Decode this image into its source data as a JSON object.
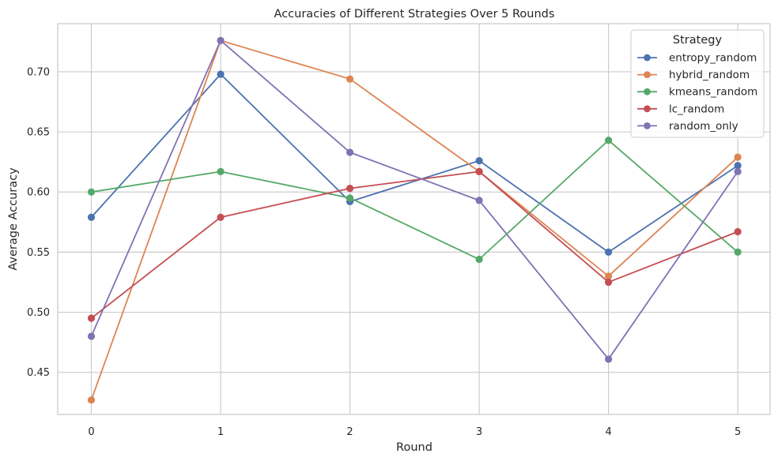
{
  "chart_data": {
    "type": "line",
    "title": "Accuracies of Different Strategies Over 5 Rounds",
    "xlabel": "Round",
    "ylabel": "Average Accuracy",
    "x": [
      0,
      1,
      2,
      3,
      4,
      5
    ],
    "xticks": [
      "0",
      "1",
      "2",
      "3",
      "4",
      "5"
    ],
    "yticks": [
      "0.45",
      "0.50",
      "0.55",
      "0.60",
      "0.65",
      "0.70"
    ],
    "xlim": [
      -0.26,
      5.25
    ],
    "ylim": [
      0.415,
      0.74
    ],
    "grid": true,
    "legend_title": "Strategy",
    "legend_position": "top-right",
    "series": [
      {
        "name": "entropy_random",
        "color": "#4c72b0",
        "values": [
          0.579,
          0.698,
          0.592,
          0.626,
          0.55,
          0.622
        ]
      },
      {
        "name": "hybrid_random",
        "color": "#dd8452",
        "values": [
          0.427,
          0.726,
          0.694,
          0.617,
          0.53,
          0.629
        ]
      },
      {
        "name": "kmeans_random",
        "color": "#55a868",
        "values": [
          0.6,
          0.617,
          0.595,
          0.544,
          0.643,
          0.55
        ]
      },
      {
        "name": "lc_random",
        "color": "#c44e52",
        "values": [
          0.495,
          0.579,
          0.603,
          0.617,
          0.525,
          0.567
        ]
      },
      {
        "name": "random_only",
        "color": "#8172b3",
        "values": [
          0.48,
          0.726,
          0.633,
          0.593,
          0.461,
          0.617
        ]
      }
    ]
  }
}
